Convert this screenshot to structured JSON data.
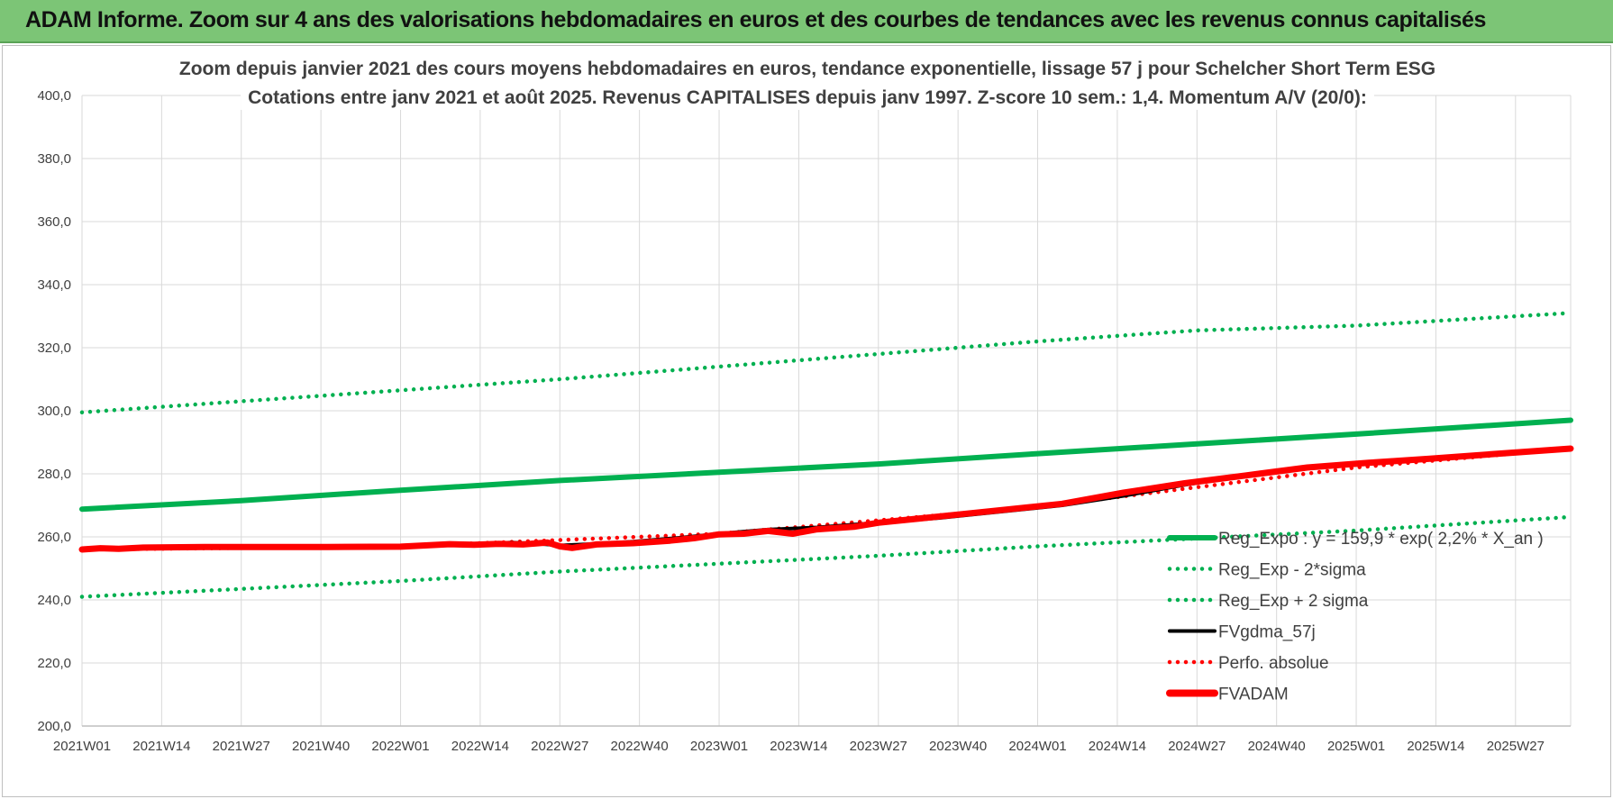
{
  "header": {
    "title": "ADAM Informe. Zoom sur 4 ans des valorisations hebdomadaires en euros et des courbes de tendances avec les revenus connus capitalisés",
    "background": "#7cc576"
  },
  "chart_data": {
    "type": "line",
    "title_lines": [
      "Zoom depuis janvier 2021 des cours moyens hebdomadaires en euros, tendance exponentielle, lissage 57 j pour Schelcher Short Term ESG",
      "Cotations entre janv 2021 et août 2025. Revenus CAPITALISES depuis janv 1997. Z-score 10 sem.: 1,4. Momentum A/V (20/0):"
    ],
    "xlabel": "",
    "ylabel": "",
    "ylim": [
      200,
      400
    ],
    "y_ticks": [
      "400,0",
      "380,0",
      "360,0",
      "340,0",
      "320,0",
      "300,0",
      "280,0",
      "260,0",
      "240,0",
      "220,0",
      "200,0"
    ],
    "x_ticks": [
      "2021W01",
      "2021W14",
      "2021W27",
      "2021W40",
      "2022W01",
      "2022W14",
      "2022W27",
      "2022W40",
      "2023W01",
      "2023W14",
      "2023W27",
      "2023W40",
      "2024W01",
      "2024W14",
      "2024W27",
      "2024W40",
      "2025W01",
      "2025W14",
      "2025W27"
    ],
    "x_span_weeks": 243,
    "grid": true,
    "legend_position": "right",
    "series": [
      {
        "name": "Reg_Expo : y = 159,9 * exp( 2,2% *  X_an )",
        "color": "#00b050",
        "style": "solid",
        "x": [
          0,
          26,
          52,
          78,
          104,
          130,
          156,
          182,
          208,
          243
        ],
        "y": [
          268.8,
          271.5,
          274.8,
          277.9,
          280.5,
          283.1,
          286.4,
          289.5,
          292.6,
          297.0
        ]
      },
      {
        "name": "Reg_Exp - 2*sigma",
        "color": "#00b050",
        "style": "dotted",
        "x": [
          0,
          26,
          52,
          78,
          104,
          130,
          156,
          182,
          208,
          243
        ],
        "y": [
          241.0,
          243.5,
          246.0,
          249.0,
          251.5,
          254.0,
          257.0,
          259.5,
          262.0,
          266.3
        ]
      },
      {
        "name": "Reg_Exp + 2 sigma",
        "color": "#00b050",
        "style": "dotted",
        "x": [
          0,
          26,
          52,
          78,
          104,
          130,
          156,
          182,
          208,
          243
        ],
        "y": [
          299.5,
          303.0,
          306.5,
          310.0,
          314.0,
          318.0,
          322.0,
          325.5,
          327.0,
          331.0
        ]
      },
      {
        "name": "FVgdma_57j",
        "color": "#000000",
        "style": "solid",
        "x": [
          0,
          10,
          30,
          52,
          60,
          66,
          70,
          74,
          78,
          84,
          90,
          98,
          104,
          112,
          120,
          130,
          140,
          150,
          160,
          170,
          180,
          190,
          200,
          210,
          220,
          230,
          243
        ],
        "y": [
          256.2,
          256.5,
          256.8,
          257.0,
          257.5,
          257.8,
          258.2,
          257.9,
          257.3,
          257.8,
          258.5,
          259.8,
          261.0,
          262.3,
          263.0,
          264.5,
          266.0,
          268.0,
          270.0,
          273.0,
          276.5,
          279.5,
          282.0,
          283.8,
          285.0,
          286.3,
          288.0
        ]
      },
      {
        "name": "Perfo. absolue",
        "color": "#ff0000",
        "style": "dotted",
        "x": [
          0,
          52,
          104,
          156,
          208,
          243
        ],
        "y": [
          256.0,
          257.0,
          261.0,
          269.5,
          282.0,
          288.0
        ]
      },
      {
        "name": "FVADAM",
        "color": "#ff0000",
        "style": "thick",
        "x": [
          0,
          3,
          6,
          10,
          20,
          30,
          40,
          52,
          56,
          60,
          64,
          68,
          72,
          76,
          78,
          80,
          84,
          90,
          96,
          100,
          104,
          108,
          112,
          116,
          120,
          126,
          130,
          140,
          150,
          160,
          170,
          180,
          190,
          200,
          210,
          220,
          230,
          243
        ],
        "y": [
          256.0,
          256.4,
          256.2,
          256.6,
          256.8,
          256.8,
          256.8,
          256.9,
          257.3,
          257.7,
          257.5,
          257.8,
          257.6,
          258.2,
          257.0,
          256.5,
          257.6,
          258.0,
          258.8,
          259.6,
          260.8,
          261.0,
          261.9,
          261.0,
          262.4,
          263.2,
          264.5,
          266.5,
          268.5,
          270.5,
          274.0,
          277.0,
          279.5,
          282.0,
          283.5,
          284.8,
          286.2,
          288.0
        ]
      }
    ]
  }
}
